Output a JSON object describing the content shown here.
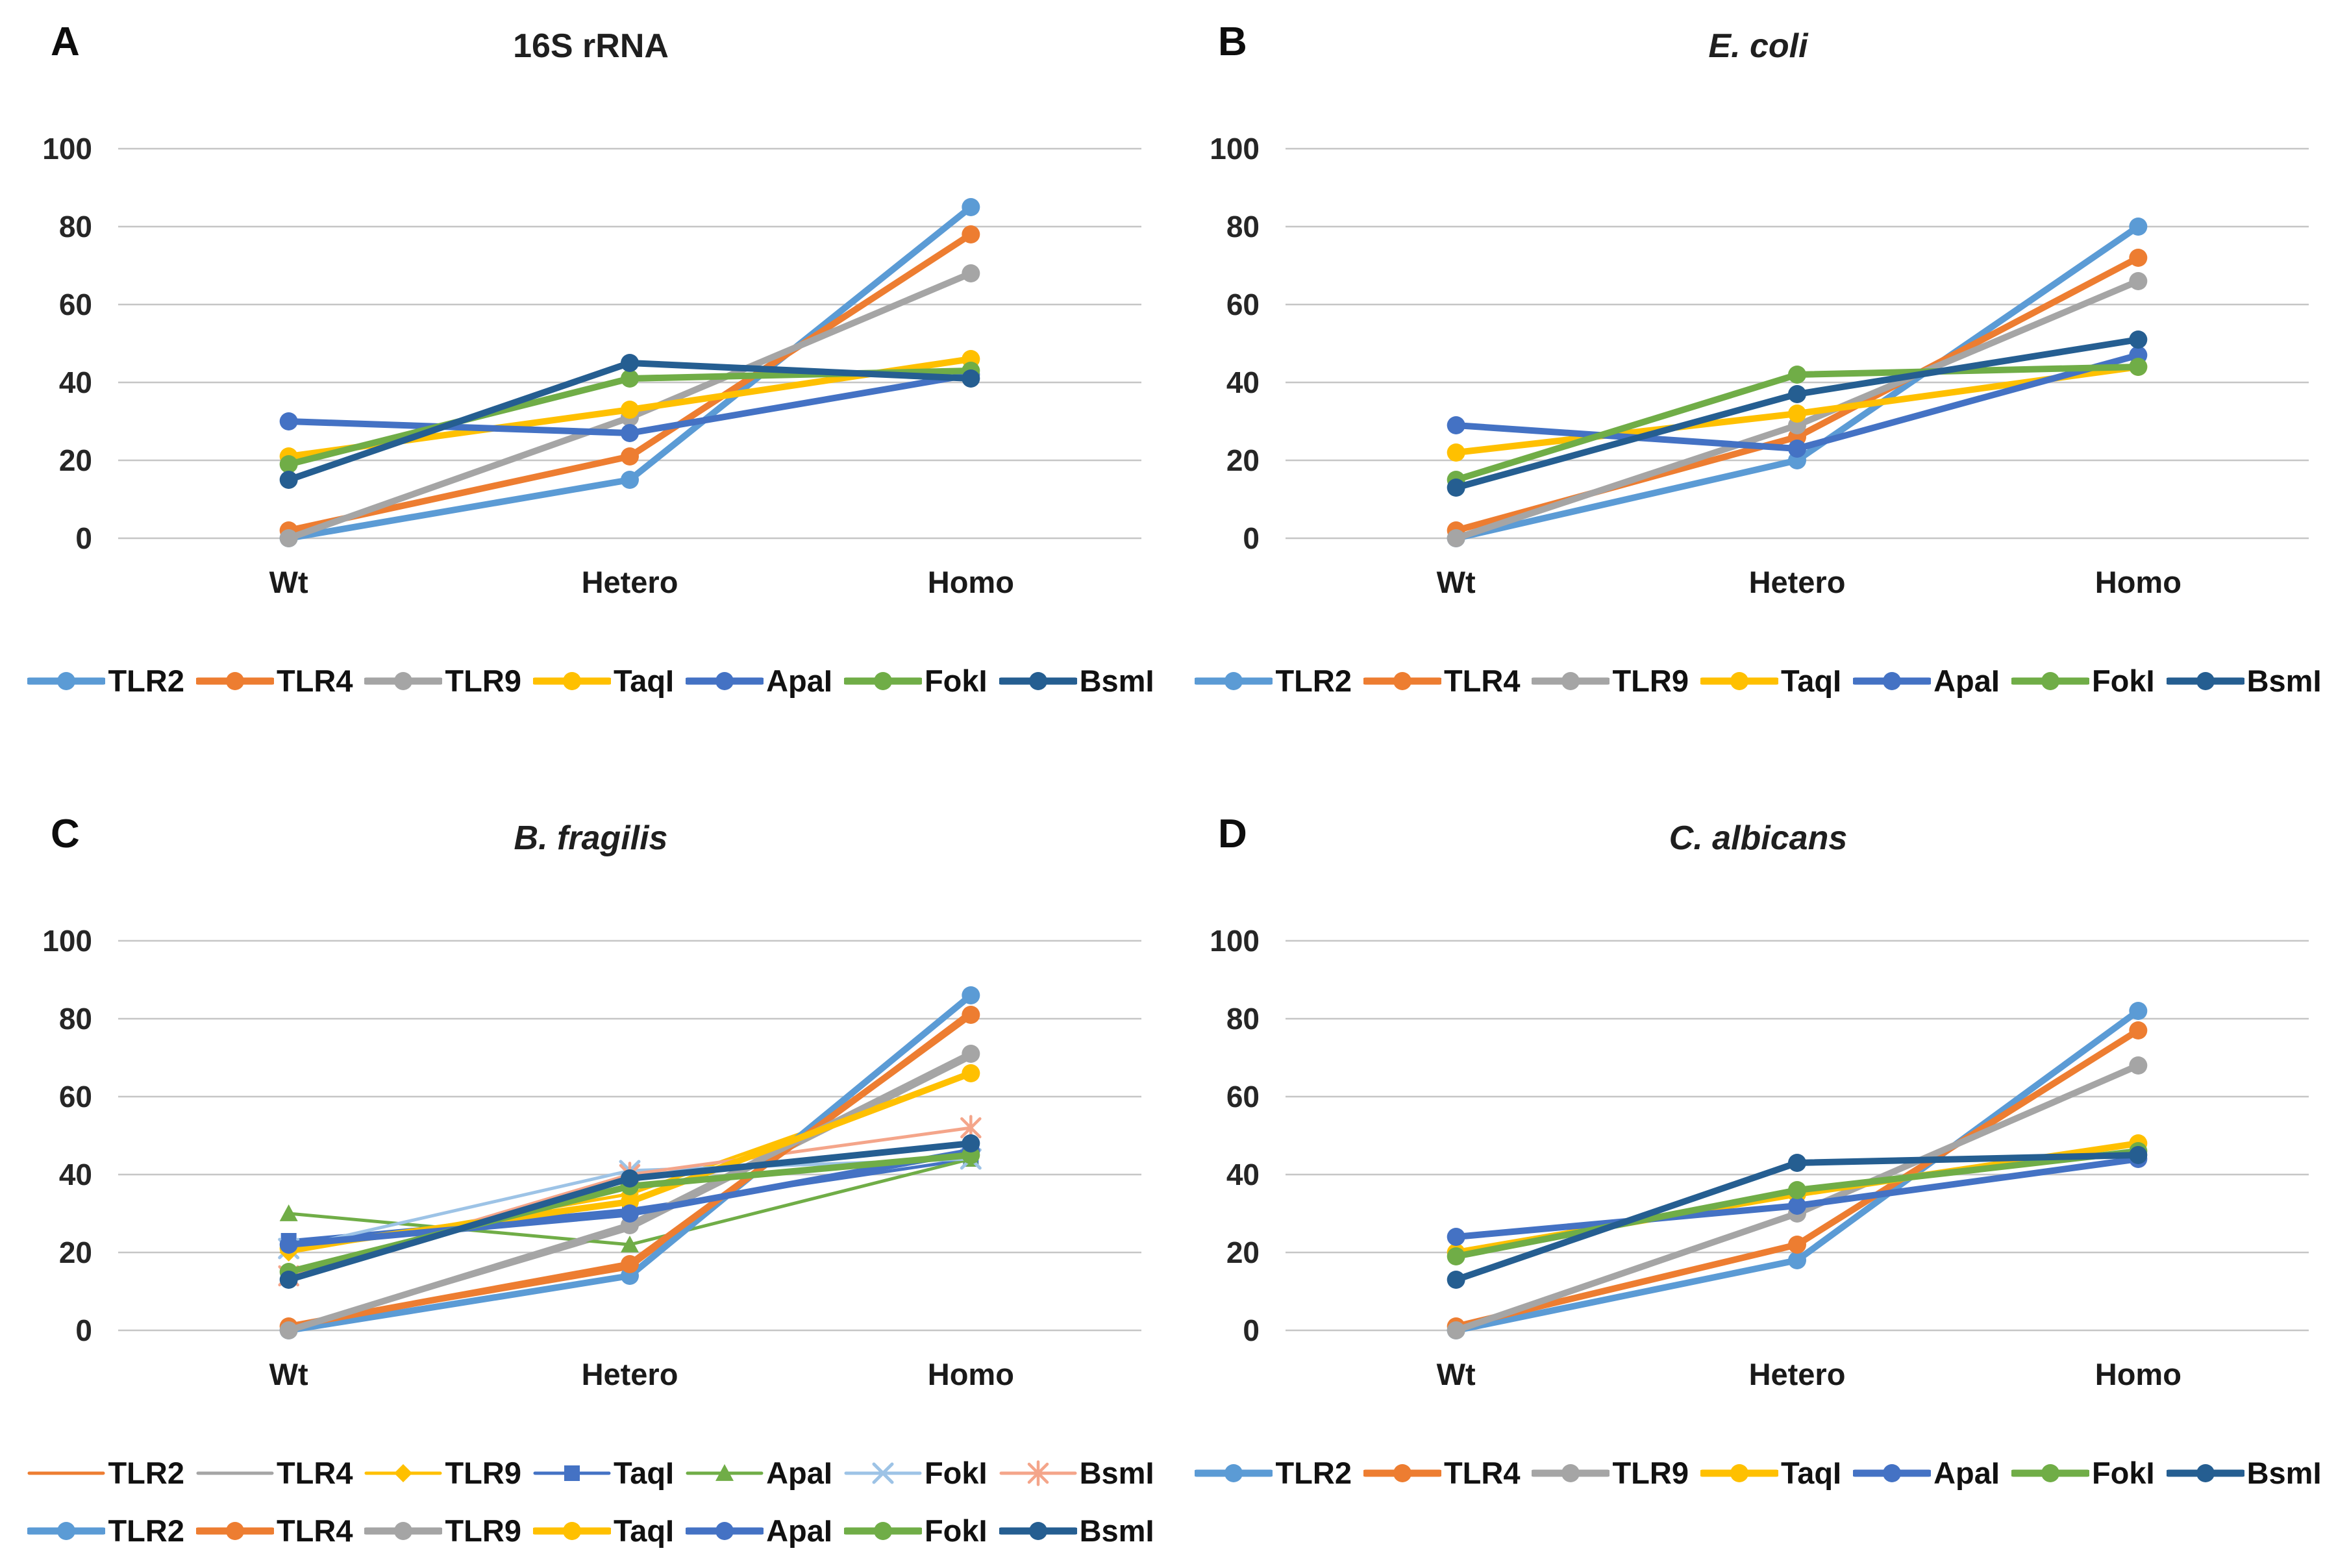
{
  "figure": {
    "background": "#ffffff",
    "layout": "2x2-panels",
    "panel_letters": [
      "A",
      "B",
      "C",
      "D"
    ]
  },
  "chart_data": [
    {
      "type": "line",
      "panel": "A",
      "title": "16S rRNA",
      "title_italic": false,
      "categories": [
        "Wt",
        "Hetero",
        "Homo"
      ],
      "xlabel": "",
      "ylabel": "",
      "ylim": [
        0,
        100
      ],
      "yticks": [
        100,
        80,
        60,
        40,
        20,
        0
      ],
      "grid": true,
      "legend_position": "bottom",
      "series": [
        {
          "name": "TLR2",
          "color": "#5B9BD5",
          "marker": "circle",
          "line": "thick",
          "legend_row": 0,
          "values": [
            0,
            15,
            85
          ]
        },
        {
          "name": "TLR4",
          "color": "#ED7D31",
          "marker": "circle",
          "line": "thick",
          "legend_row": 0,
          "values": [
            2,
            21,
            78
          ]
        },
        {
          "name": "TLR9",
          "color": "#A5A5A5",
          "marker": "circle",
          "line": "thick",
          "legend_row": 0,
          "values": [
            0,
            31,
            68
          ]
        },
        {
          "name": "TaqI",
          "color": "#FFC000",
          "marker": "circle",
          "line": "thick",
          "legend_row": 0,
          "values": [
            21,
            33,
            46
          ]
        },
        {
          "name": "ApaI",
          "color": "#4472C4",
          "marker": "circle",
          "line": "thick",
          "legend_row": 0,
          "values": [
            30,
            27,
            42
          ]
        },
        {
          "name": "FokI",
          "color": "#70AD47",
          "marker": "circle",
          "line": "thick",
          "legend_row": 0,
          "values": [
            19,
            41,
            43
          ]
        },
        {
          "name": "BsmI",
          "color": "#255E91",
          "marker": "circle",
          "line": "thick",
          "legend_row": 0,
          "values": [
            15,
            45,
            41
          ]
        }
      ]
    },
    {
      "type": "line",
      "panel": "B",
      "title": "E. coli",
      "title_italic": true,
      "categories": [
        "Wt",
        "Hetero",
        "Homo"
      ],
      "xlabel": "",
      "ylabel": "",
      "ylim": [
        0,
        100
      ],
      "yticks": [
        100,
        80,
        60,
        40,
        20,
        0
      ],
      "grid": true,
      "legend_position": "bottom",
      "series": [
        {
          "name": "TLR2",
          "color": "#5B9BD5",
          "marker": "circle",
          "line": "thick",
          "legend_row": 0,
          "values": [
            0,
            20,
            80
          ]
        },
        {
          "name": "TLR4",
          "color": "#ED7D31",
          "marker": "circle",
          "line": "thick",
          "legend_row": 0,
          "values": [
            2,
            26,
            72
          ]
        },
        {
          "name": "TLR9",
          "color": "#A5A5A5",
          "marker": "circle",
          "line": "thick",
          "legend_row": 0,
          "values": [
            0,
            29,
            66
          ]
        },
        {
          "name": "TaqI",
          "color": "#FFC000",
          "marker": "circle",
          "line": "thick",
          "legend_row": 0,
          "values": [
            22,
            32,
            44
          ]
        },
        {
          "name": "ApaI",
          "color": "#4472C4",
          "marker": "circle",
          "line": "thick",
          "legend_row": 0,
          "values": [
            29,
            23,
            47
          ]
        },
        {
          "name": "FokI",
          "color": "#70AD47",
          "marker": "circle",
          "line": "thick",
          "legend_row": 0,
          "values": [
            15,
            42,
            44
          ]
        },
        {
          "name": "BsmI",
          "color": "#255E91",
          "marker": "circle",
          "line": "thick",
          "legend_row": 0,
          "values": [
            13,
            37,
            51
          ]
        }
      ]
    },
    {
      "type": "line",
      "panel": "C",
      "title": "B. fragilis",
      "title_italic": true,
      "categories": [
        "Wt",
        "Hetero",
        "Homo"
      ],
      "xlabel": "",
      "ylabel": "",
      "ylim": [
        0,
        100
      ],
      "yticks": [
        100,
        80,
        60,
        40,
        20,
        0
      ],
      "grid": true,
      "legend_position": "bottom",
      "series": [
        {
          "name": "TLR2",
          "color": "#ED7D31",
          "marker": "none",
          "line": "thin",
          "legend_row": 0,
          "values": [
            1,
            16,
            82
          ]
        },
        {
          "name": "TLR4",
          "color": "#A5A5A5",
          "marker": "none",
          "line": "thin",
          "legend_row": 0,
          "values": [
            0,
            26,
            70
          ]
        },
        {
          "name": "TLR9",
          "color": "#FFC000",
          "marker": "diamond",
          "line": "thin",
          "legend_row": 0,
          "values": [
            20,
            35,
            66
          ]
        },
        {
          "name": "TaqI",
          "color": "#4472C4",
          "marker": "square",
          "line": "thin",
          "legend_row": 0,
          "values": [
            23,
            31,
            44
          ]
        },
        {
          "name": "ApaI",
          "color": "#70AD47",
          "marker": "triangle",
          "line": "thin",
          "legend_row": 0,
          "values": [
            30,
            22,
            44
          ]
        },
        {
          "name": "FokI",
          "color": "#9DC3E6",
          "marker": "x",
          "line": "thin",
          "legend_row": 0,
          "values": [
            21,
            41,
            44
          ]
        },
        {
          "name": "BsmI",
          "color": "#F4A58A",
          "marker": "asterisk",
          "line": "thin",
          "legend_row": 0,
          "values": [
            14,
            40,
            52
          ]
        },
        {
          "name": "TLR2",
          "color": "#5B9BD5",
          "marker": "circle",
          "line": "thick",
          "legend_row": 1,
          "values": [
            0,
            14,
            86
          ]
        },
        {
          "name": "TLR4",
          "color": "#ED7D31",
          "marker": "circle",
          "line": "thick",
          "legend_row": 1,
          "values": [
            1,
            17,
            81
          ]
        },
        {
          "name": "TLR9",
          "color": "#A5A5A5",
          "marker": "circle",
          "line": "thick",
          "legend_row": 1,
          "values": [
            0,
            27,
            71
          ]
        },
        {
          "name": "TaqI",
          "color": "#FFC000",
          "marker": "circle",
          "line": "thick",
          "legend_row": 1,
          "values": [
            21,
            33,
            66
          ]
        },
        {
          "name": "ApaI",
          "color": "#4472C4",
          "marker": "circle",
          "line": "thick",
          "legend_row": 1,
          "values": [
            22,
            30,
            46
          ]
        },
        {
          "name": "FokI",
          "color": "#70AD47",
          "marker": "circle",
          "line": "thick",
          "legend_row": 1,
          "values": [
            15,
            37,
            45
          ]
        },
        {
          "name": "BsmI",
          "color": "#255E91",
          "marker": "circle",
          "line": "thick",
          "legend_row": 1,
          "values": [
            13,
            39,
            48
          ]
        }
      ]
    },
    {
      "type": "line",
      "panel": "D",
      "title": "C. albicans",
      "title_italic": true,
      "categories": [
        "Wt",
        "Hetero",
        "Homo"
      ],
      "xlabel": "",
      "ylabel": "",
      "ylim": [
        0,
        100
      ],
      "yticks": [
        100,
        80,
        60,
        40,
        20,
        0
      ],
      "grid": true,
      "legend_position": "bottom",
      "series": [
        {
          "name": "TLR2",
          "color": "#5B9BD5",
          "marker": "circle",
          "line": "thick",
          "legend_row": 0,
          "values": [
            0,
            18,
            82
          ]
        },
        {
          "name": "TLR4",
          "color": "#ED7D31",
          "marker": "circle",
          "line": "thick",
          "legend_row": 0,
          "values": [
            1,
            22,
            77
          ]
        },
        {
          "name": "TLR9",
          "color": "#A5A5A5",
          "marker": "circle",
          "line": "thick",
          "legend_row": 0,
          "values": [
            0,
            30,
            68
          ]
        },
        {
          "name": "TaqI",
          "color": "#FFC000",
          "marker": "circle",
          "line": "thick",
          "legend_row": 0,
          "values": [
            20,
            35,
            48
          ]
        },
        {
          "name": "ApaI",
          "color": "#4472C4",
          "marker": "circle",
          "line": "thick",
          "legend_row": 0,
          "values": [
            24,
            32,
            44
          ]
        },
        {
          "name": "FokI",
          "color": "#70AD47",
          "marker": "circle",
          "line": "thick",
          "legend_row": 0,
          "values": [
            19,
            36,
            46
          ]
        },
        {
          "name": "BsmI",
          "color": "#255E91",
          "marker": "circle",
          "line": "thick",
          "legend_row": 0,
          "values": [
            13,
            43,
            45
          ]
        }
      ]
    }
  ]
}
